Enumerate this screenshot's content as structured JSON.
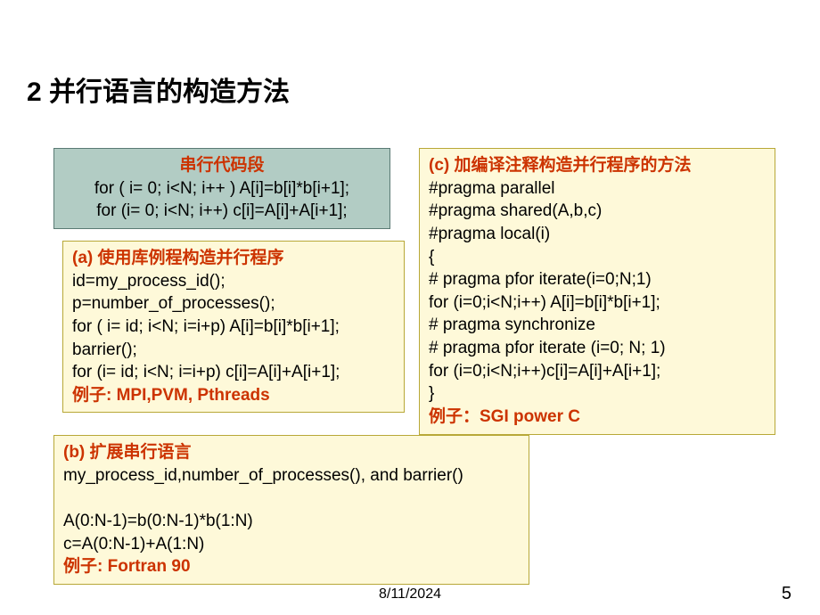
{
  "title": "2 并行语言的构造方法",
  "serial": {
    "heading": "串行代码段",
    "line1": "for ( i= 0; i<N; i++ ) A[i]=b[i]*b[i+1];",
    "line2": "for (i= 0; i<N; i++) c[i]=A[i]+A[i+1];"
  },
  "boxA": {
    "heading": "(a)  使用库例程构造并行程序",
    "l1": "id=my_process_id();",
    "l2": "p=number_of_processes();",
    "l3": "for ( i= id; i<N; i=i+p) A[i]=b[i]*b[i+1];",
    "l4": "barrier();",
    "l5": "for (i= id; i<N; i=i+p) c[i]=A[i]+A[i+1];",
    "example": "例子:  MPI,PVM, Pthreads"
  },
  "boxB": {
    "heading": "(b) 扩展串行语言",
    "l1": "my_process_id,number_of_processes(), and barrier()",
    "l2": " ",
    "l3": "A(0:N-1)=b(0:N-1)*b(1:N)",
    "l4": "c=A(0:N-1)+A(1:N)",
    "example": "例子: Fortran 90"
  },
  "boxC": {
    "heading": "(c)  加编译注释构造并行程序的方法",
    "l1": "#pragma parallel",
    "l2": "#pragma shared(A,b,c)",
    "l3": "#pragma local(i)",
    "l4": "{",
    "l5": "# pragma pfor iterate(i=0;N;1)",
    "l6": "for (i=0;i<N;i++) A[i]=b[i]*b[i+1];",
    "l7": "# pragma synchronize",
    "l8": "# pragma pfor iterate (i=0; N; 1)",
    "l9": "for (i=0;i<N;i++)c[i]=A[i]+A[i+1];",
    "l10": "}",
    "example": "例子：SGI power C"
  },
  "footer": {
    "date": "8/11/2024",
    "page": "5"
  },
  "colors": {
    "slide_bg": "#ffffff",
    "serial_bg": "#b2ccc4",
    "serial_border": "#5a7a74",
    "yellow_bg": "#fef9d9",
    "yellow_border": "#b8a838",
    "red_text": "#cc3300",
    "black_text": "#000000"
  }
}
